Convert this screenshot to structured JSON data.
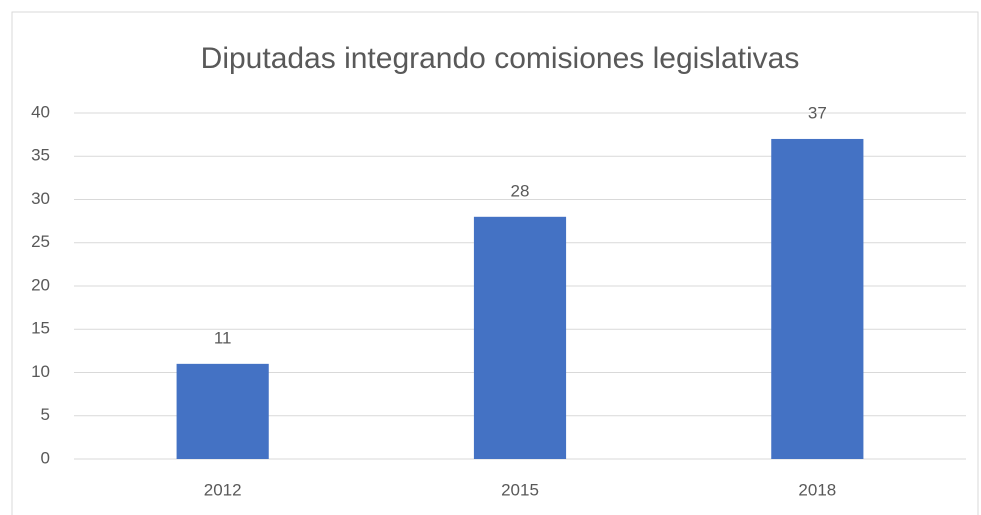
{
  "chart_data": {
    "type": "bar",
    "title": "Diputadas integrando comisiones legislativas",
    "categories": [
      "2012",
      "2015",
      "2018"
    ],
    "values": [
      11,
      28,
      37
    ],
    "color": "#4472c4",
    "ylim": [
      0,
      40
    ],
    "yticks": [
      0,
      5,
      10,
      15,
      20,
      25,
      30,
      35,
      40
    ],
    "grid": true
  }
}
